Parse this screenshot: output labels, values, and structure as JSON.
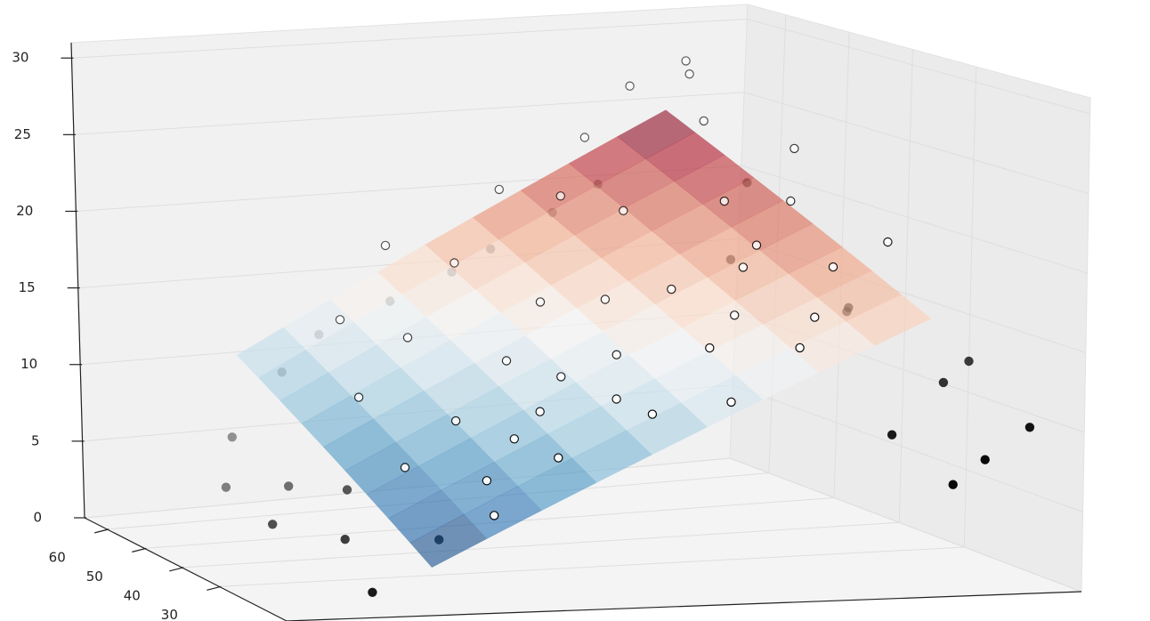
{
  "chart_data": {
    "type": "scatter3d",
    "xlim": [
      0,
      100
    ],
    "ylim": [
      12,
      66
    ],
    "zlim": [
      0,
      31
    ],
    "yticks": [
      30,
      40,
      50,
      60
    ],
    "zticks": [
      0,
      5,
      10,
      15,
      20,
      25,
      30
    ],
    "grid": true,
    "surface": {
      "x": [
        20,
        27,
        34,
        41,
        48,
        55,
        62,
        69,
        76,
        83
      ],
      "y": [
        15,
        20,
        25,
        30,
        35,
        40,
        45,
        50,
        55,
        60
      ],
      "z": [
        [
          2.5,
          4.1,
          5.7,
          7.3,
          8.9,
          10.5,
          12.1,
          13.7,
          15.3,
          16.9
        ],
        [
          3.4,
          5,
          6.6,
          8.2,
          9.8,
          11.4,
          13,
          14.6,
          16.2,
          17.8
        ],
        [
          4.3,
          5.9,
          7.5,
          9.1,
          10.7,
          12.3,
          13.9,
          15.5,
          17.1,
          18.7
        ],
        [
          5.2,
          6.8,
          8.4,
          10,
          11.6,
          13.2,
          14.8,
          16.4,
          18,
          19.6
        ],
        [
          6.1,
          7.7,
          9.3,
          10.9,
          12.5,
          14.1,
          15.7,
          17.3,
          18.9,
          20.5
        ],
        [
          7,
          8.6,
          10.2,
          11.8,
          13.4,
          15,
          16.6,
          18.2,
          19.8,
          21.4
        ],
        [
          7.9,
          9.5,
          11.1,
          12.7,
          14.3,
          15.9,
          17.5,
          19.1,
          20.7,
          22.3
        ],
        [
          8.8,
          10.4,
          12,
          13.6,
          15.2,
          16.8,
          18.4,
          20,
          21.6,
          23.2
        ],
        [
          9.7,
          11.3,
          12.9,
          14.5,
          16.1,
          17.7,
          19.3,
          20.9,
          22.5,
          24.1
        ],
        [
          10.6,
          12.2,
          13.8,
          15.4,
          17,
          18.6,
          20.2,
          21.8,
          23.4,
          25
        ]
      ],
      "colormap": [
        "#053061",
        "#2166ac",
        "#4393c3",
        "#92c5de",
        "#d1e5f0",
        "#f7f7f7",
        "#fddbc7",
        "#f4a582",
        "#d6604d",
        "#b2182b",
        "#67001f"
      ],
      "alpha": 0.6
    },
    "series": [
      {
        "color": "#ffffff",
        "edgecolor": "#000000",
        "x": [
          30,
          40,
          50,
          60,
          70,
          80,
          82,
          25,
          35,
          45,
          55,
          65,
          75,
          80,
          85,
          32,
          42,
          52,
          62,
          72,
          78,
          28,
          38,
          48,
          58,
          68,
          76,
          60,
          50,
          40,
          30,
          68,
          84,
          56,
          46,
          36,
          66,
          74,
          86,
          24
        ],
        "y": [
          20,
          25,
          18,
          22,
          30,
          35,
          55,
          40,
          45,
          50,
          55,
          45,
          40,
          50,
          25,
          30,
          35,
          28,
          32,
          20,
          25,
          15,
          18,
          22,
          15,
          17,
          58,
          50,
          40,
          57,
          52,
          56,
          58,
          36,
          30,
          24,
          26,
          33,
          42,
          28
        ],
        "z": [
          7,
          10.5,
          11,
          14.5,
          18.5,
          22,
          28,
          10,
          13,
          17,
          21,
          20.5,
          21.5,
          25.5,
          20.5,
          9.5,
          12.5,
          13.5,
          17,
          16.5,
          19,
          5.5,
          8.5,
          11.5,
          12,
          15,
          27,
          21,
          15.5,
          17.5,
          13.5,
          24,
          28.5,
          16,
          12,
          9,
          16,
          19.5,
          24.5,
          7
        ]
      },
      {
        "color": "#000000",
        "edgecolor": "#000000",
        "x": [
          15,
          18,
          16,
          28,
          45,
          60,
          75,
          88,
          92,
          95,
          90,
          98,
          86,
          82,
          100,
          22,
          17,
          12,
          35,
          55,
          70,
          10,
          26,
          88,
          80
        ],
        "y": [
          20,
          45,
          55,
          62,
          63,
          63,
          62,
          52,
          40,
          28,
          15,
          18,
          15,
          20,
          30,
          38,
          30,
          50,
          64,
          64,
          64,
          35,
          24,
          35,
          45
        ],
        "z": [
          0.5,
          4,
          6,
          9,
          13,
          16,
          20,
          21,
          14,
          11,
          8,
          9.5,
          6.5,
          9,
          12,
          4.5,
          2.5,
          3.5,
          11,
          14.5,
          18,
          3,
          3,
          15,
          17
        ]
      }
    ]
  }
}
